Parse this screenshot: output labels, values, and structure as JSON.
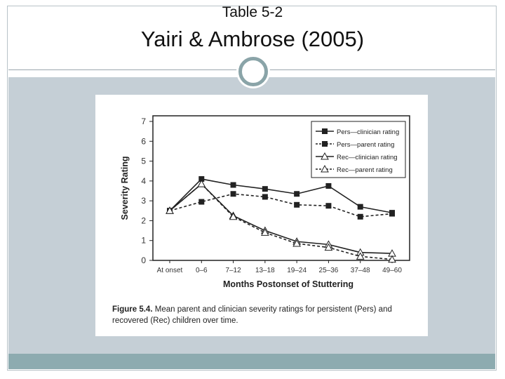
{
  "slide": {
    "subtitle": "Table 5-2",
    "title": "Yairi & Ambrose (2005)"
  },
  "figure": {
    "label": "Figure 5.4.",
    "caption": "Mean parent and clinician severity ratings for persistent (Pers) and recovered (Rec) children over time."
  },
  "colors": {
    "frame": "#b8c2c8",
    "body_bg": "#c5cfd6",
    "footer": "#8dabb0",
    "circle": "#8aa4a8",
    "series": "#222222"
  },
  "chart_data": {
    "type": "line",
    "xlabel": "Months Postonset of Stuttering",
    "ylabel": "Severity Rating",
    "categories": [
      "At onset",
      "0–6",
      "7–12",
      "13–18",
      "19–24",
      "25–36",
      "37–48",
      "49–60"
    ],
    "ylim": [
      0,
      7
    ],
    "yticks": [
      0,
      1,
      2,
      3,
      4,
      5,
      6,
      7
    ],
    "grid": false,
    "legend": "top-right",
    "series": [
      {
        "name": "Pers—clinician rating",
        "marker": "square",
        "dash": "solid",
        "values": [
          2.5,
          4.1,
          3.8,
          3.6,
          3.35,
          3.75,
          2.7,
          2.4
        ]
      },
      {
        "name": "Pers—parent rating",
        "marker": "square",
        "dash": "dashed",
        "values": [
          2.5,
          2.95,
          3.35,
          3.2,
          2.8,
          2.75,
          2.2,
          2.35
        ]
      },
      {
        "name": "Rec—clinician rating",
        "marker": "triangle",
        "dash": "solid",
        "values": [
          2.5,
          3.85,
          2.25,
          1.5,
          0.95,
          0.8,
          0.4,
          0.35
        ]
      },
      {
        "name": "Rec—parent rating",
        "marker": "triangle",
        "dash": "dashed",
        "values": [
          2.5,
          3.85,
          2.2,
          1.4,
          0.85,
          0.65,
          0.2,
          0.05
        ]
      }
    ]
  }
}
